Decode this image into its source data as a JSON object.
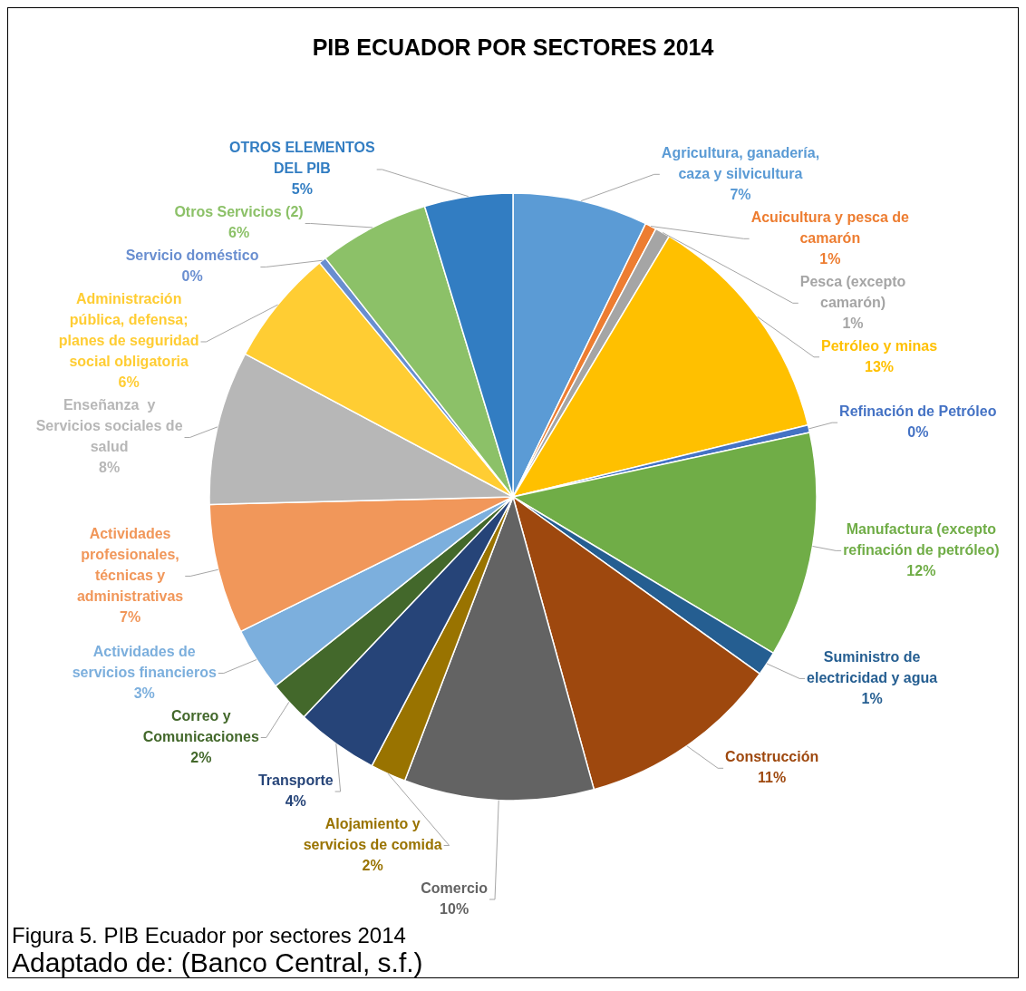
{
  "chart_data": {
    "type": "pie",
    "title": "PIB ECUADOR POR SECTORES 2014",
    "categories": [
      "Agricultura, ganadería, caza y silvicultura",
      "Acuicultura y pesca de camarón",
      "Pesca (excepto camarón)",
      "Petróleo y minas",
      "Refinación de Petróleo",
      "Manufactura (excepto refinación de petróleo)",
      "Suministro de electricidad y agua",
      "Construcción",
      "Comercio",
      "Alojamiento y servicios de comida",
      "Transporte",
      "Correo y Comunicaciones",
      "Actividades de servicios financieros",
      "Actividades profesionales, técnicas y administrativas",
      "Enseñanza  y Servicios sociales de salud",
      "Administración pública, defensa; planes de seguridad social obligatoria",
      "Servicio doméstico",
      "Otros Servicios (2)",
      "OTROS ELEMENTOS DEL PIB"
    ],
    "values": [
      7.2,
      0.6,
      0.8,
      12.6,
      0.4,
      12.0,
      1.3,
      10.8,
      10.1,
      1.9,
      4.4,
      2.2,
      3.4,
      6.9,
      8.2,
      6.2,
      0.4,
      5.9,
      4.7
    ],
    "value_labels": [
      "7%",
      "1%",
      "1%",
      "13%",
      "0%",
      "12%",
      "1%",
      "11%",
      "10%",
      "2%",
      "4%",
      "2%",
      "3%",
      "7%",
      "8%",
      "6%",
      "0%",
      "6%",
      "5%"
    ],
    "colors": [
      "#5b9bd5",
      "#ed7d31",
      "#a5a5a5",
      "#ffc000",
      "#4472c4",
      "#70ad47",
      "#255e91",
      "#9e480e",
      "#636363",
      "#997300",
      "#264478",
      "#43682b",
      "#7cafdd",
      "#f1975a",
      "#b7b7b7",
      "#ffcd33",
      "#698ed0",
      "#8cc168",
      "#327dc2"
    ],
    "legend": false,
    "annotations": [
      "Figura 5. PIB Ecuador por sectores 2014",
      "Adaptado de: (Banco Central, s.f.)"
    ]
  }
}
